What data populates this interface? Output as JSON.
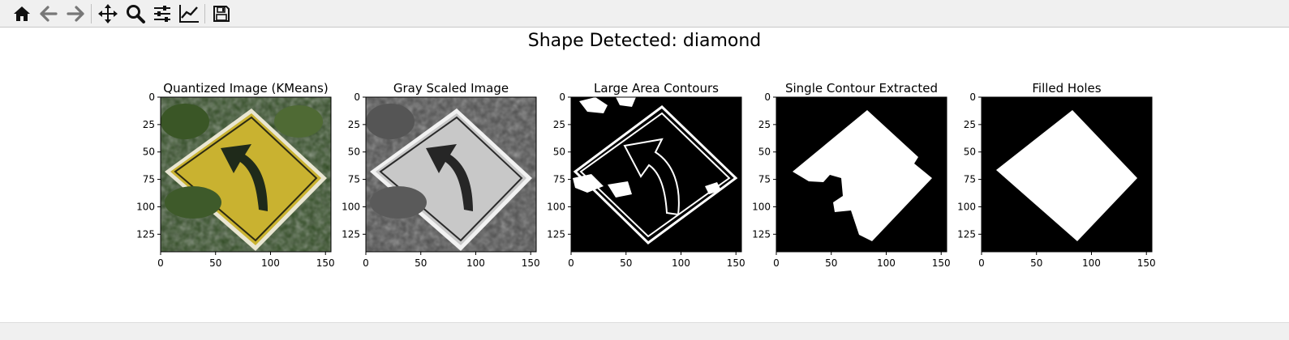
{
  "toolbar": {
    "buttons": [
      {
        "name": "home-icon",
        "tooltip": "Home"
      },
      {
        "name": "back-arrow-icon",
        "tooltip": "Back"
      },
      {
        "name": "forward-arrow-icon",
        "tooltip": "Forward"
      },
      {
        "name": "pan-icon",
        "tooltip": "Pan"
      },
      {
        "name": "zoom-icon",
        "tooltip": "Zoom"
      },
      {
        "name": "subplots-icon",
        "tooltip": "Subplots"
      },
      {
        "name": "axes-edit-icon",
        "tooltip": "Customize"
      },
      {
        "name": "save-icon",
        "tooltip": "Save"
      }
    ]
  },
  "figure": {
    "suptitle": "Shape Detected: diamond"
  },
  "status_text": "",
  "chart_data": [
    {
      "type": "image",
      "title": "Quantized Image (KMeans)",
      "xticks": [
        "0",
        "50",
        "100",
        "150"
      ],
      "yticks": [
        "0",
        "25",
        "50",
        "75",
        "100",
        "125"
      ],
      "xlim": [
        0,
        155
      ],
      "ylim": [
        141,
        0
      ]
    },
    {
      "type": "image",
      "title": "Gray Scaled Image",
      "xticks": [
        "0",
        "50",
        "100",
        "150"
      ],
      "yticks": [
        "0",
        "25",
        "50",
        "75",
        "100",
        "125"
      ],
      "xlim": [
        0,
        155
      ],
      "ylim": [
        141,
        0
      ]
    },
    {
      "type": "image",
      "title": "Large Area Contours",
      "xticks": [
        "0",
        "50",
        "100",
        "150"
      ],
      "yticks": [
        "0",
        "25",
        "50",
        "75",
        "100",
        "125"
      ],
      "xlim": [
        0,
        155
      ],
      "ylim": [
        141,
        0
      ]
    },
    {
      "type": "image",
      "title": "Single Contour Extracted",
      "xticks": [
        "0",
        "50",
        "100",
        "150"
      ],
      "yticks": [
        "0",
        "25",
        "50",
        "75",
        "100",
        "125"
      ],
      "xlim": [
        0,
        155
      ],
      "ylim": [
        141,
        0
      ]
    },
    {
      "type": "image",
      "title": "Filled Holes",
      "xticks": [
        "0",
        "50",
        "100",
        "150"
      ],
      "yticks": [
        "0",
        "25",
        "50",
        "75",
        "100",
        "125"
      ],
      "xlim": [
        0,
        155
      ],
      "ylim": [
        141,
        0
      ]
    }
  ],
  "colors": {
    "sign_yellow": "#c9b230",
    "foliage_dark": "#2f4a22",
    "arrow_dark": "#1f2a1a",
    "mask_white": "#ffffff",
    "mask_black": "#000000"
  }
}
